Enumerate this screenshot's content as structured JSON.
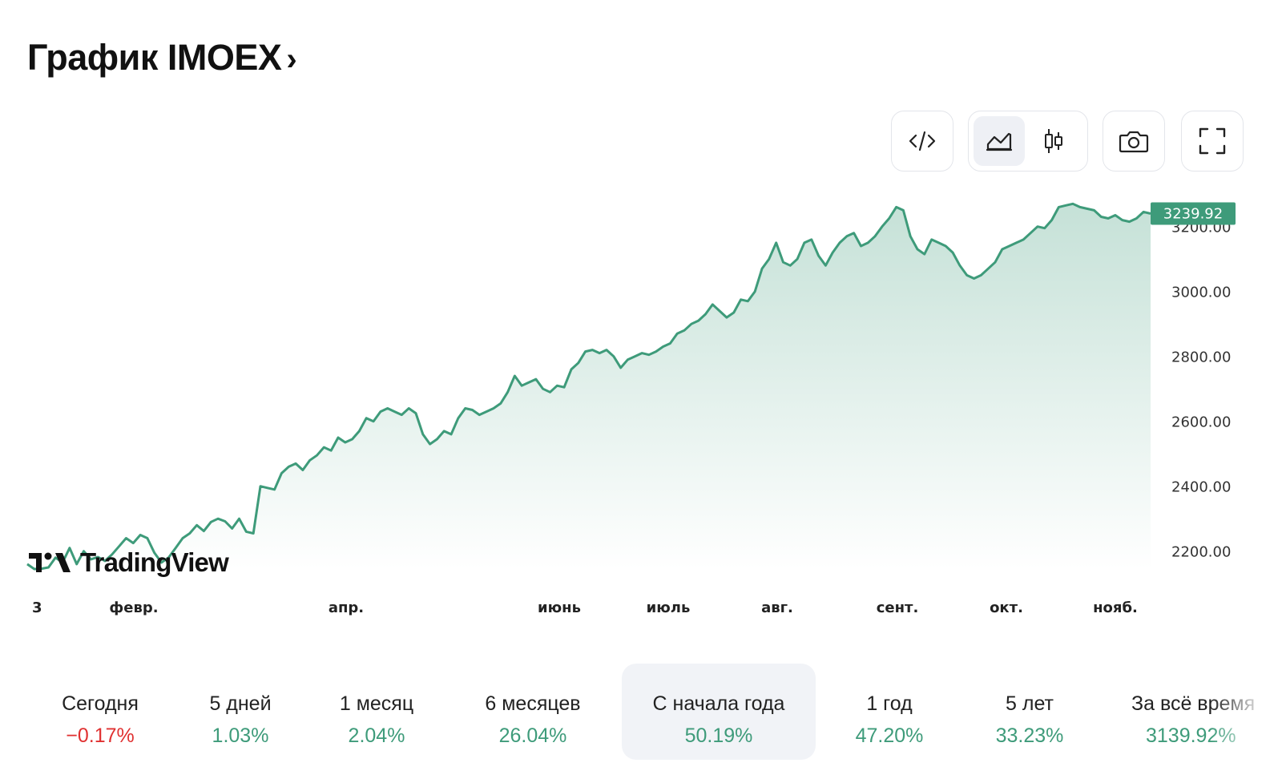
{
  "header": {
    "title": "График IMOEX",
    "chevron": "›"
  },
  "toolbar": {
    "embed": {
      "icon": "code-icon"
    },
    "chart_type": {
      "area_icon": "area-chart-icon",
      "candles_icon": "candlestick-icon",
      "selected": "area"
    },
    "screenshot": {
      "icon": "camera-icon"
    },
    "fullscreen": {
      "icon": "fullscreen-icon"
    }
  },
  "branding": {
    "logo_text": "TradingView"
  },
  "colors": {
    "line": "#3e9b7a",
    "negative": "#e03131",
    "active_bg": "#f1f3f7"
  },
  "chart_data": {
    "type": "area",
    "title": "",
    "y_ticks": [
      "3200.00",
      "3000.00",
      "2800.00",
      "2600.00",
      "2400.00",
      "2200.00"
    ],
    "ylim": [
      2150,
      3330
    ],
    "x_tick_labels": [
      "3",
      "февр.",
      "апр.",
      "июнь",
      "июль",
      "авг.",
      "сент.",
      "окт.",
      "нояб."
    ],
    "last_value": 3239.92,
    "last_value_label": "3239.92",
    "series": [
      {
        "values": [
          2160,
          2145,
          2146,
          2150,
          2180,
          2165,
          2210,
          2160,
          2200,
          2175,
          2182,
          2170,
          2190,
          2215,
          2240,
          2225,
          2250,
          2240,
          2195,
          2165,
          2180,
          2210,
          2240,
          2255,
          2280,
          2262,
          2290,
          2300,
          2292,
          2270,
          2300,
          2260,
          2255,
          2400,
          2395,
          2390,
          2440,
          2460,
          2470,
          2450,
          2480,
          2495,
          2520,
          2510,
          2550,
          2535,
          2545,
          2570,
          2610,
          2600,
          2630,
          2640,
          2630,
          2620,
          2640,
          2625,
          2560,
          2530,
          2545,
          2570,
          2560,
          2610,
          2640,
          2635,
          2620,
          2630,
          2640,
          2655,
          2690,
          2740,
          2710,
          2720,
          2730,
          2700,
          2690,
          2710,
          2705,
          2760,
          2780,
          2815,
          2820,
          2810,
          2820,
          2800,
          2765,
          2790,
          2800,
          2810,
          2805,
          2815,
          2830,
          2840,
          2870,
          2880,
          2900,
          2910,
          2930,
          2960,
          2940,
          2920,
          2935,
          2975,
          2970,
          3000,
          3070,
          3100,
          3150,
          3090,
          3080,
          3100,
          3150,
          3160,
          3110,
          3080,
          3120,
          3150,
          3170,
          3180,
          3140,
          3150,
          3170,
          3200,
          3225,
          3260,
          3250,
          3170,
          3130,
          3115,
          3160,
          3150,
          3140,
          3120,
          3080,
          3050,
          3040,
          3050,
          3070,
          3090,
          3130,
          3140,
          3150,
          3160,
          3180,
          3200,
          3195,
          3220,
          3260,
          3265,
          3270,
          3260,
          3255,
          3250,
          3230,
          3225,
          3235,
          3220,
          3215,
          3225,
          3245,
          3239.92
        ]
      }
    ]
  },
  "periods": [
    {
      "label": "Сегодня",
      "value": "−0.17%",
      "trend": "neg"
    },
    {
      "label": "5 дней",
      "value": "1.03%",
      "trend": "pos"
    },
    {
      "label": "1 месяц",
      "value": "2.04%",
      "trend": "pos"
    },
    {
      "label": "6 месяцев",
      "value": "26.04%",
      "trend": "pos"
    },
    {
      "label": "С начала года",
      "value": "50.19%",
      "trend": "pos",
      "active": true
    },
    {
      "label": "1 год",
      "value": "47.20%",
      "trend": "pos"
    },
    {
      "label": "5 лет",
      "value": "33.23%",
      "trend": "pos"
    },
    {
      "label": "За всё время",
      "value": "3139.92%",
      "trend": "pos"
    }
  ]
}
